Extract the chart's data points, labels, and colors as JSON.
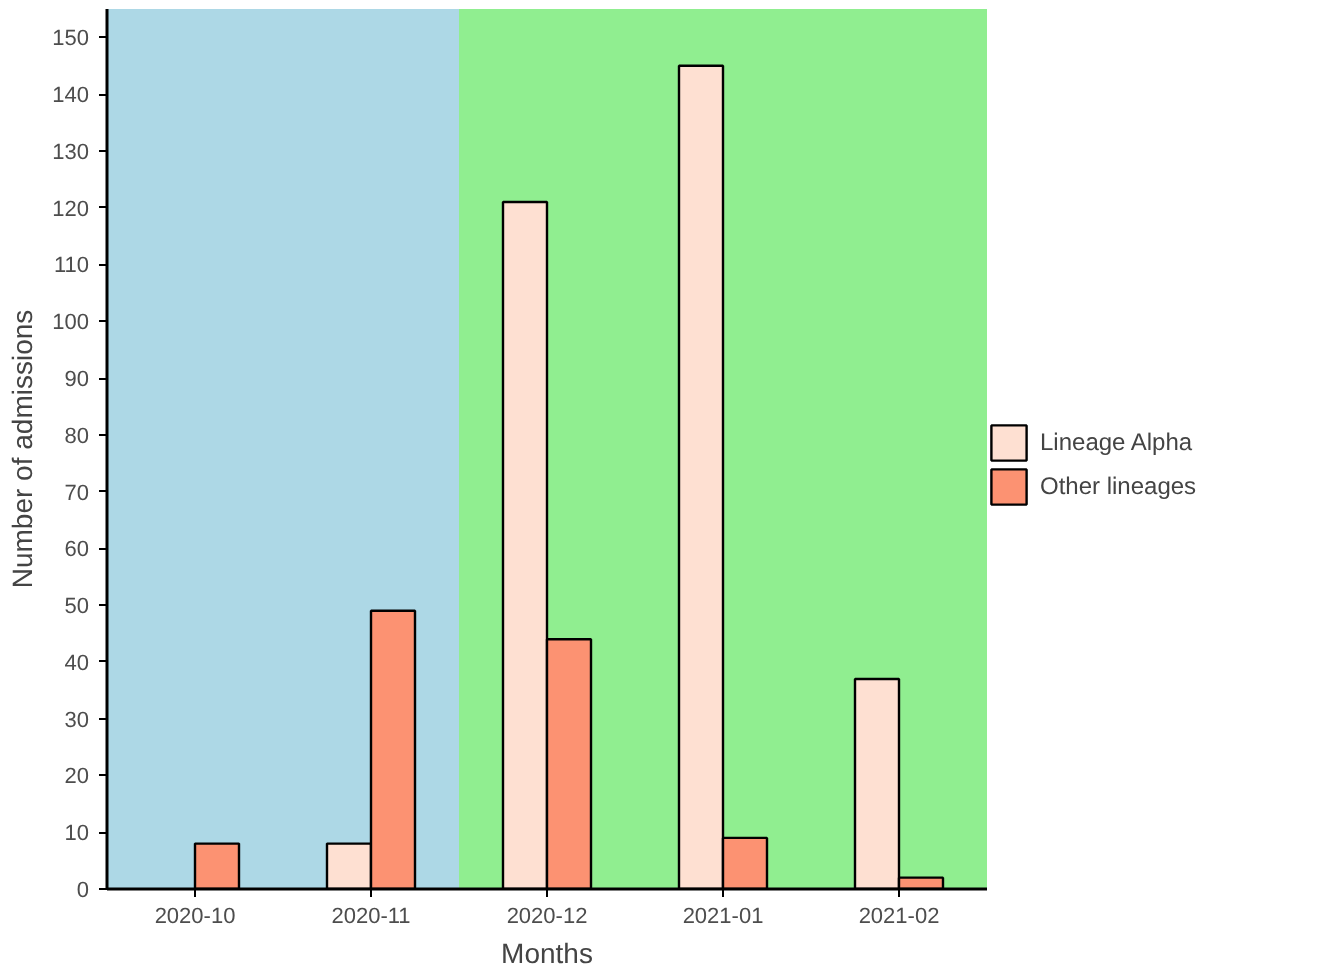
{
  "chart_data": {
    "type": "bar",
    "xlabel": "Months",
    "ylabel": "Number of admissions",
    "categories": [
      "2020-10",
      "2020-11",
      "2020-12",
      "2021-01",
      "2021-02"
    ],
    "series": [
      {
        "name": "Lineage Alpha",
        "color": "#fee0d2",
        "values": [
          null,
          8,
          121,
          145,
          37
        ]
      },
      {
        "name": "Other lineages",
        "color": "#fc9272",
        "values": [
          8,
          49,
          44,
          9,
          2
        ]
      }
    ],
    "ylim": [
      0,
      155
    ],
    "yticks": [
      0,
      10,
      20,
      30,
      40,
      50,
      60,
      70,
      80,
      90,
      100,
      110,
      120,
      130,
      140,
      150
    ],
    "bands": [
      {
        "axis": "x",
        "from": "2020-10",
        "to": "2020-11",
        "color": "#add8e6"
      },
      {
        "axis": "x",
        "from": "2020-12",
        "to": "2021-02",
        "color": "#90ee90"
      }
    ],
    "legend": "right"
  }
}
